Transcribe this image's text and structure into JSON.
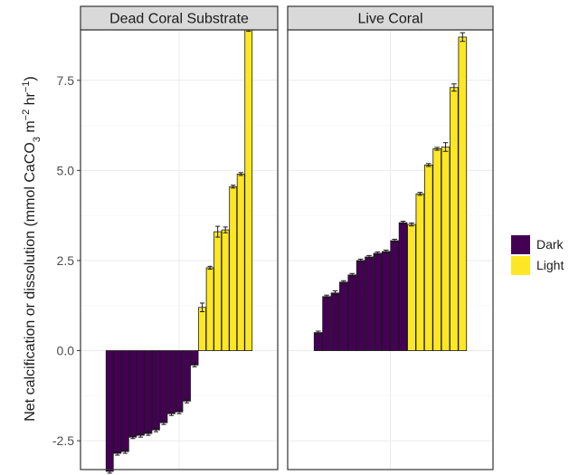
{
  "chart_data": {
    "type": "bar",
    "facets": [
      "Dead Coral Substrate",
      "Live Coral"
    ],
    "ylabel": {
      "prefix": "Net calcification or dissolution (mmol CaCO",
      "sub": "3",
      "mid1": " m",
      "sup1": "−2",
      "mid2": " hr",
      "sup2": "−1",
      "suffix": ")"
    },
    "ylim": [
      -3.3,
      8.9
    ],
    "yticks": [
      -2.5,
      0.0,
      2.5,
      5.0,
      7.5
    ],
    "ytick_labels": [
      "-2.5",
      "0.0",
      "2.5",
      "5.0",
      "7.5"
    ],
    "grid": true,
    "legend": {
      "placement": "right",
      "entries": [
        {
          "name": "Dark",
          "color": "#440154"
        },
        {
          "name": "Light",
          "color": "#fde725"
        }
      ]
    },
    "series": [
      {
        "facet": "Dead Coral Substrate",
        "name": "Dark",
        "values": [
          -3.35,
          -2.85,
          -2.8,
          -2.4,
          -2.35,
          -2.3,
          -2.2,
          -2.0,
          -1.75,
          -1.7,
          -1.4,
          -0.4
        ],
        "errors": [
          0.05,
          0.05,
          0.05,
          0.04,
          0.05,
          0.05,
          0.05,
          0.05,
          0.05,
          0.05,
          0.05,
          0.05
        ]
      },
      {
        "facet": "Dead Coral Substrate",
        "name": "Light",
        "values": [
          1.2,
          2.3,
          3.3,
          3.35,
          4.55,
          4.9,
          8.9
        ],
        "errors": [
          0.12,
          0.04,
          0.15,
          0.08,
          0.04,
          0.04,
          0.04
        ]
      },
      {
        "facet": "Live Coral",
        "name": "Dark",
        "values": [
          0.5,
          1.5,
          1.6,
          1.9,
          2.1,
          2.5,
          2.6,
          2.7,
          2.75,
          3.05,
          3.55
        ],
        "errors": [
          0.04,
          0.04,
          0.06,
          0.04,
          0.04,
          0.04,
          0.04,
          0.04,
          0.04,
          0.04,
          0.04
        ]
      },
      {
        "facet": "Live Coral",
        "name": "Light",
        "values": [
          3.5,
          4.35,
          5.15,
          5.6,
          5.65,
          7.3,
          8.7
        ],
        "errors": [
          0.04,
          0.04,
          0.04,
          0.04,
          0.12,
          0.1,
          0.12
        ]
      }
    ]
  }
}
